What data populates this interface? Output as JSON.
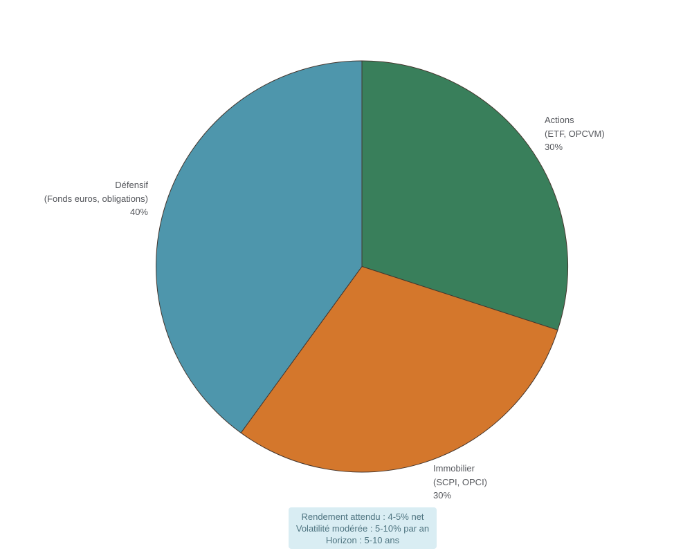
{
  "chart_data": {
    "type": "pie",
    "title": "",
    "start_angle_deg": 90,
    "direction": "clockwise",
    "stroke_color": "#44362e",
    "legend_position": "none",
    "label_text_color": "#54565b",
    "slices": [
      {
        "id": "actions",
        "label": "Actions",
        "sublabel": "(ETF, OPCVM)",
        "value": 30,
        "pct_label": "30%",
        "color": "#397f5b"
      },
      {
        "id": "immobilier",
        "label": "Immobilier",
        "sublabel": "(SCPI, OPCI)",
        "value": 30,
        "pct_label": "30%",
        "color": "#d4772c"
      },
      {
        "id": "defensif",
        "label": "Défensif",
        "sublabel": "(Fonds euros, obligations)",
        "value": 40,
        "pct_label": "40%",
        "color": "#4e96ac"
      }
    ]
  },
  "annotation": {
    "lines": [
      "Rendement attendu : 4-5% net",
      "Volatilité modérée : 5-10% par an",
      "Horizon : 5-10 ans"
    ],
    "background_color": "#d9edf3",
    "text_color": "#4e7480"
  }
}
